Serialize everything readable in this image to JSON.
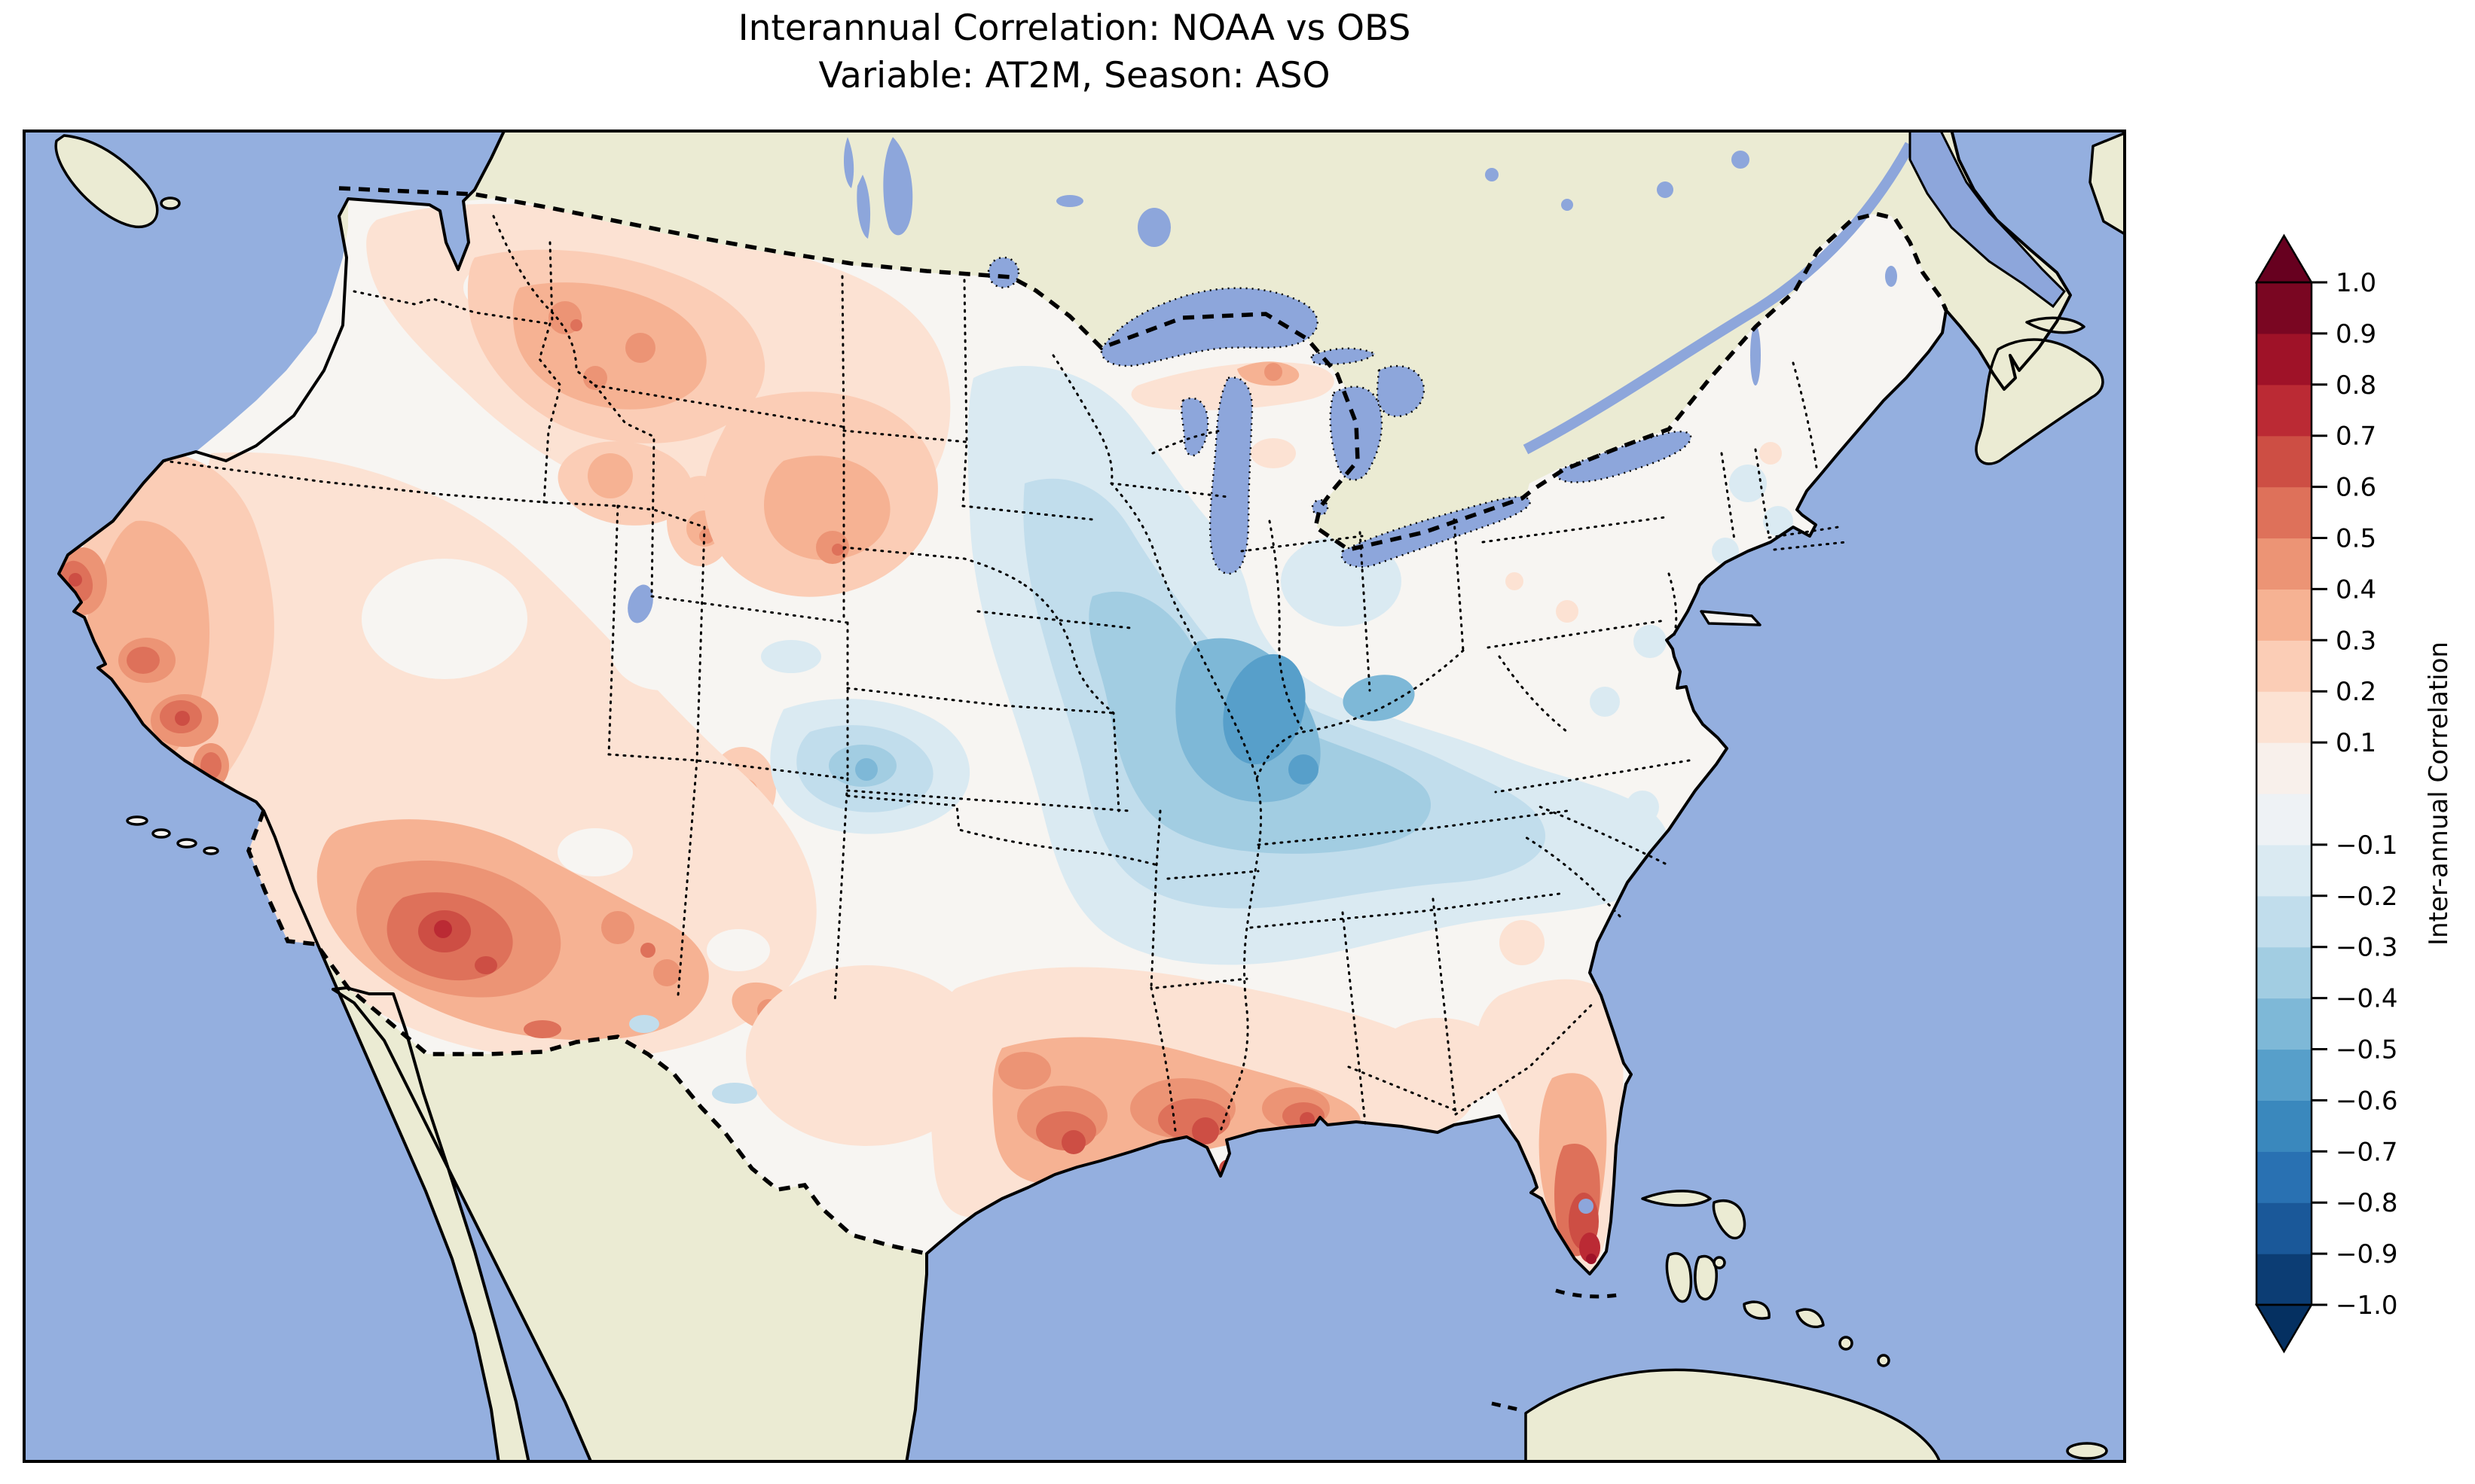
{
  "figure": {
    "title_line1": "Interannual Correlation: NOAA vs OBS",
    "title_line2": "Variable: AT2M, Season: ASO"
  },
  "colorbar": {
    "label": "Inter-annual Correlation",
    "range": [
      -1.0,
      1.0
    ],
    "extend": "both",
    "under_color": "#053061",
    "over_color": "#67001f",
    "segment_colors": [
      "#0C3D74",
      "#1A5899",
      "#2971B2",
      "#3A88BD",
      "#579FCA",
      "#7EB8D7",
      "#A2CDE2",
      "#C1DDEC",
      "#DAEAF2",
      "#EEF2F5",
      "#F8F0EB",
      "#FCE2D3",
      "#FBCDB6",
      "#F6B293",
      "#EC9475",
      "#DE715A",
      "#CD4E44",
      "#BB2A34",
      "#9F1228",
      "#7A0622"
    ],
    "ticks": [
      {
        "v": 1.0,
        "label": "1.0"
      },
      {
        "v": 0.9,
        "label": "0.9"
      },
      {
        "v": 0.8,
        "label": "0.8"
      },
      {
        "v": 0.7,
        "label": "0.7"
      },
      {
        "v": 0.6,
        "label": "0.6"
      },
      {
        "v": 0.5,
        "label": "0.5"
      },
      {
        "v": 0.4,
        "label": "0.4"
      },
      {
        "v": 0.3,
        "label": "0.3"
      },
      {
        "v": 0.2,
        "label": "0.2"
      },
      {
        "v": 0.1,
        "label": "0.1"
      },
      {
        "v": -0.1,
        "label": "−0.1"
      },
      {
        "v": -0.2,
        "label": "−0.2"
      },
      {
        "v": -0.3,
        "label": "−0.3"
      },
      {
        "v": -0.4,
        "label": "−0.4"
      },
      {
        "v": -0.5,
        "label": "−0.5"
      },
      {
        "v": -0.6,
        "label": "−0.6"
      },
      {
        "v": -0.7,
        "label": "−0.7"
      },
      {
        "v": -0.8,
        "label": "−0.8"
      },
      {
        "v": -0.9,
        "label": "−0.9"
      },
      {
        "v": -1.0,
        "label": "−1.0"
      }
    ]
  },
  "map_colors": {
    "ocean": "#94AFDF",
    "land_no_data": "#EBEBD3",
    "lakes": "#8DA6DB",
    "data_base": "#F7F5F2"
  },
  "chart_data": {
    "type": "heatmap",
    "title": "Interannual Correlation: NOAA vs OBS",
    "subtitle": "Variable: AT2M, Season: ASO",
    "geography": "Contiguous United States filled contour map; Canada, Mexico, ocean and Caribbean masked (no data)",
    "colormap": "RdBu_r (diverging, red = positive, blue = negative)",
    "value_range": [
      -1.0,
      1.0
    ],
    "contour_interval": 0.1,
    "colorbar_label": "Inter-annual Correlation",
    "colorbar_ticks": [
      1.0,
      0.9,
      0.8,
      0.7,
      0.6,
      0.5,
      0.4,
      0.3,
      0.2,
      0.1,
      -0.1,
      -0.2,
      -0.3,
      -0.4,
      -0.5,
      -0.6,
      -0.7,
      -0.8,
      -0.9,
      -1.0
    ],
    "legend_position": "right",
    "regions": [
      {
        "region": "Pacific Northwest (WA/OR)",
        "approx_correlation": 0.15
      },
      {
        "region": "Northern Rockies (MT/ID/WY)",
        "approx_correlation": 0.4
      },
      {
        "region": "California coast (around SF Bay)",
        "approx_correlation": 0.6
      },
      {
        "region": "Southern Sierra / SoCal interior",
        "approx_correlation": 0.5
      },
      {
        "region": "Great Basin (NV/UT)",
        "approx_correlation": 0.05
      },
      {
        "region": "Desert Southwest (AZ/NM)",
        "approx_correlation": 0.65
      },
      {
        "region": "Dakotas / Nebraska plains",
        "approx_correlation": 0.35
      },
      {
        "region": "Central Plains (western KS/OK)",
        "approx_correlation": -0.35
      },
      {
        "region": "Upper Midwest (MN/WI)",
        "approx_correlation": -0.25
      },
      {
        "region": "Corn Belt core (IA/IL/MO)",
        "approx_correlation": -0.55
      },
      {
        "region": "Ohio Valley (IN/OH/KY)",
        "approx_correlation": -0.35
      },
      {
        "region": "Lake Superior south shore (Michigan UP)",
        "approx_correlation": 0.45
      },
      {
        "region": "Northeast (New England / Mid-Atlantic)",
        "approx_correlation": 0.0
      },
      {
        "region": "Southeast interior (GA/SC/NC)",
        "approx_correlation": 0.1
      },
      {
        "region": "Gulf Coast (east TX/LA/MS/AL)",
        "approx_correlation": 0.6
      },
      {
        "region": "Florida peninsula",
        "approx_correlation": 0.55
      },
      {
        "region": "South Florida tip",
        "approx_correlation": 0.8
      }
    ]
  }
}
